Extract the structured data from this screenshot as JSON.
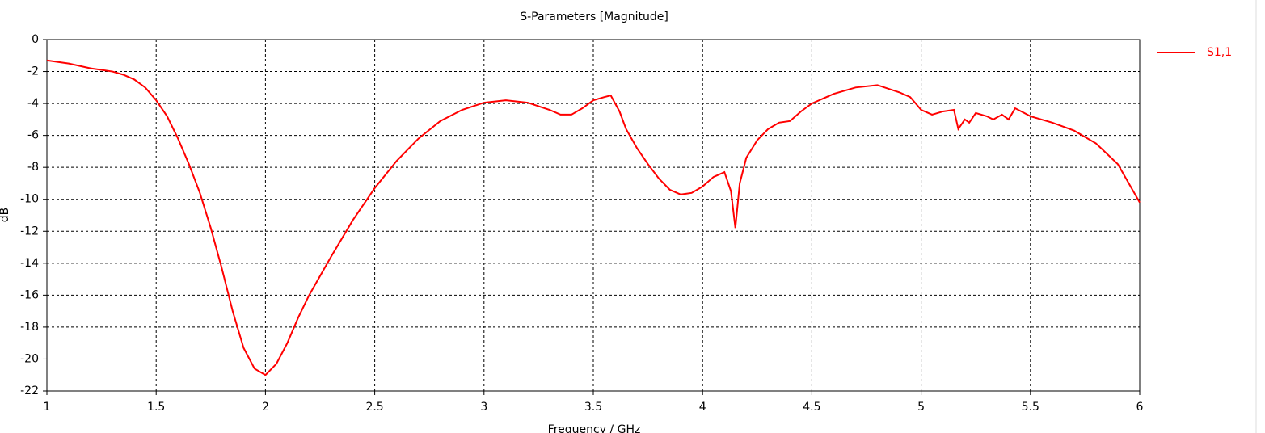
{
  "chart_data": {
    "type": "line",
    "title": "S-Parameters [Magnitude]",
    "xlabel": "Frequency / GHz",
    "ylabel": "dB",
    "xlim": [
      1,
      6
    ],
    "ylim": [
      -22,
      0
    ],
    "xticks": [
      1,
      1.5,
      2,
      2.5,
      3,
      3.5,
      4,
      4.5,
      5,
      5.5,
      6
    ],
    "yticks": [
      0,
      -2,
      -4,
      -6,
      -8,
      -10,
      -12,
      -14,
      -16,
      -18,
      -20,
      -22
    ],
    "grid": true,
    "legend": "right",
    "x": [
      1.0,
      1.1,
      1.2,
      1.3,
      1.35,
      1.4,
      1.45,
      1.5,
      1.55,
      1.6,
      1.65,
      1.7,
      1.75,
      1.8,
      1.85,
      1.9,
      1.95,
      2.0,
      2.05,
      2.1,
      2.15,
      2.2,
      2.3,
      2.4,
      2.5,
      2.6,
      2.7,
      2.8,
      2.9,
      3.0,
      3.1,
      3.2,
      3.3,
      3.35,
      3.4,
      3.45,
      3.5,
      3.55,
      3.58,
      3.62,
      3.65,
      3.7,
      3.75,
      3.8,
      3.85,
      3.9,
      3.95,
      4.0,
      4.05,
      4.1,
      4.13,
      4.15,
      4.17,
      4.2,
      4.25,
      4.3,
      4.35,
      4.4,
      4.45,
      4.5,
      4.6,
      4.7,
      4.8,
      4.9,
      4.95,
      5.0,
      5.05,
      5.1,
      5.15,
      5.17,
      5.2,
      5.22,
      5.25,
      5.3,
      5.33,
      5.37,
      5.4,
      5.43,
      5.5,
      5.6,
      5.7,
      5.8,
      5.9,
      6.0
    ],
    "series": [
      {
        "name": "S1,1",
        "color": "#ff0000",
        "values": [
          -1.3,
          -1.5,
          -1.8,
          -2.0,
          -2.2,
          -2.5,
          -3.0,
          -3.8,
          -4.8,
          -6.2,
          -7.8,
          -9.6,
          -11.8,
          -14.3,
          -17.0,
          -19.3,
          -20.6,
          -21.0,
          -20.3,
          -19.0,
          -17.4,
          -16.0,
          -13.6,
          -11.3,
          -9.3,
          -7.6,
          -6.2,
          -5.1,
          -4.4,
          -3.95,
          -3.8,
          -3.95,
          -4.4,
          -4.7,
          -4.7,
          -4.3,
          -3.8,
          -3.6,
          -3.5,
          -4.5,
          -5.6,
          -6.8,
          -7.8,
          -8.7,
          -9.4,
          -9.7,
          -9.6,
          -9.2,
          -8.6,
          -8.3,
          -9.5,
          -11.8,
          -9.0,
          -7.4,
          -6.3,
          -5.6,
          -5.2,
          -5.1,
          -4.5,
          -4.0,
          -3.4,
          -3.0,
          -2.85,
          -3.3,
          -3.6,
          -4.4,
          -4.7,
          -4.5,
          -4.4,
          -5.6,
          -5.0,
          -5.2,
          -4.6,
          -4.8,
          -5.0,
          -4.7,
          -5.0,
          -4.3,
          -4.8,
          -5.2,
          -5.7,
          -6.5,
          -7.8,
          -10.2
        ]
      }
    ]
  }
}
